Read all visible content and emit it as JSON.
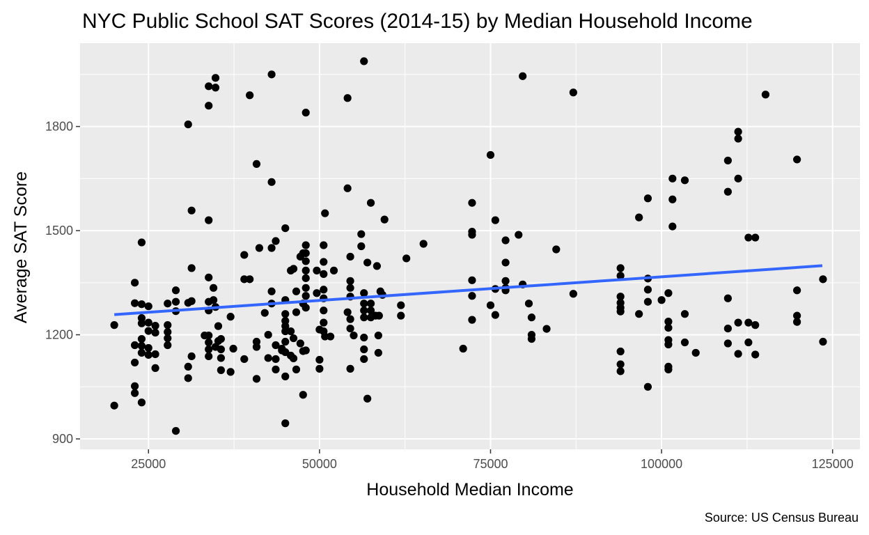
{
  "chart_data": {
    "type": "scatter",
    "title": "NYC Public School SAT Scores (2014-15) by Median Household Income",
    "xlabel": "Household Median Income",
    "ylabel": "Average SAT Score",
    "caption": "Source: US Census Bureau",
    "xlim": [
      15000,
      129000
    ],
    "ylim": [
      870,
      2040
    ],
    "x_ticks": [
      25000,
      50000,
      75000,
      100000,
      125000
    ],
    "y_ticks": [
      900,
      1200,
      1500,
      1800
    ],
    "grid": true,
    "colors": {
      "panel": "#ebebeb",
      "grid": "#ffffff",
      "point": "#000000",
      "trend": "#3366ff",
      "tick_text": "#4d4d4d"
    },
    "trend_line": {
      "x": [
        20000,
        123500
      ],
      "y": [
        1258,
        1399
      ]
    },
    "points": [
      [
        20000,
        1228
      ],
      [
        20000,
        996
      ],
      [
        23000,
        1350
      ],
      [
        23000,
        1291
      ],
      [
        23000,
        1170
      ],
      [
        23000,
        1120
      ],
      [
        23000,
        1052
      ],
      [
        23000,
        1032
      ],
      [
        24000,
        1466
      ],
      [
        24000,
        1288
      ],
      [
        24000,
        1248
      ],
      [
        24000,
        1233
      ],
      [
        24000,
        1188
      ],
      [
        24000,
        1168
      ],
      [
        24000,
        1148
      ],
      [
        24000,
        1005
      ],
      [
        25000,
        1282
      ],
      [
        25000,
        1235
      ],
      [
        25000,
        1211
      ],
      [
        25000,
        1162
      ],
      [
        25000,
        1142
      ],
      [
        26000,
        1226
      ],
      [
        26000,
        1206
      ],
      [
        26000,
        1144
      ],
      [
        26000,
        1104
      ],
      [
        27800,
        1290
      ],
      [
        27800,
        1228
      ],
      [
        27800,
        1208
      ],
      [
        27800,
        1190
      ],
      [
        27800,
        1170
      ],
      [
        29000,
        1328
      ],
      [
        29000,
        1295
      ],
      [
        29000,
        1268
      ],
      [
        29000,
        923
      ],
      [
        30800,
        1806
      ],
      [
        30800,
        1292
      ],
      [
        30800,
        1108
      ],
      [
        30800,
        1075
      ],
      [
        31300,
        1558
      ],
      [
        31300,
        1392
      ],
      [
        31300,
        1297
      ],
      [
        31300,
        1138
      ],
      [
        33200,
        1198
      ],
      [
        33800,
        1916
      ],
      [
        33800,
        1860
      ],
      [
        33800,
        1530
      ],
      [
        33800,
        1365
      ],
      [
        33800,
        1295
      ],
      [
        33800,
        1270
      ],
      [
        33800,
        1198
      ],
      [
        33800,
        1178
      ],
      [
        33800,
        1158
      ],
      [
        33800,
        1138
      ],
      [
        34500,
        1335
      ],
      [
        34500,
        1300
      ],
      [
        34800,
        1940
      ],
      [
        34800,
        1912
      ],
      [
        34800,
        1280
      ],
      [
        34800,
        1165
      ],
      [
        35200,
        1225
      ],
      [
        35200,
        1182
      ],
      [
        35600,
        1188
      ],
      [
        35600,
        1158
      ],
      [
        35600,
        1133
      ],
      [
        35600,
        1098
      ],
      [
        37000,
        1252
      ],
      [
        37000,
        1093
      ],
      [
        37400,
        1160
      ],
      [
        39000,
        1430
      ],
      [
        39000,
        1360
      ],
      [
        39000,
        1130
      ],
      [
        39800,
        1890
      ],
      [
        39800,
        1360
      ],
      [
        40800,
        1692
      ],
      [
        40800,
        1180
      ],
      [
        40800,
        1165
      ],
      [
        40800,
        1073
      ],
      [
        41200,
        1450
      ],
      [
        42000,
        1263
      ],
      [
        42500,
        1200
      ],
      [
        42500,
        1133
      ],
      [
        43000,
        1950
      ],
      [
        43000,
        1640
      ],
      [
        43000,
        1450
      ],
      [
        43000,
        1325
      ],
      [
        43000,
        1290
      ],
      [
        43600,
        1470
      ],
      [
        43600,
        1170
      ],
      [
        43600,
        1130
      ],
      [
        43600,
        1100
      ],
      [
        44500,
        1160
      ],
      [
        44500,
        1155
      ],
      [
        45000,
        1507
      ],
      [
        45000,
        1300
      ],
      [
        45000,
        1260
      ],
      [
        45000,
        1240
      ],
      [
        45000,
        1225
      ],
      [
        45000,
        1210
      ],
      [
        45000,
        1180
      ],
      [
        45000,
        1150
      ],
      [
        45000,
        1080
      ],
      [
        45000,
        945
      ],
      [
        45800,
        1385
      ],
      [
        45800,
        1210
      ],
      [
        45800,
        1140
      ],
      [
        46200,
        1390
      ],
      [
        46200,
        1190
      ],
      [
        46200,
        1132
      ],
      [
        46600,
        1325
      ],
      [
        46600,
        1265
      ],
      [
        46600,
        1100
      ],
      [
        47200,
        1425
      ],
      [
        47200,
        1175
      ],
      [
        47600,
        1435
      ],
      [
        47600,
        1290
      ],
      [
        47600,
        1153
      ],
      [
        47600,
        1027
      ],
      [
        48000,
        1840
      ],
      [
        48000,
        1458
      ],
      [
        48000,
        1435
      ],
      [
        48000,
        1412
      ],
      [
        48000,
        1385
      ],
      [
        48000,
        1363
      ],
      [
        48000,
        1335
      ],
      [
        48000,
        1312
      ],
      [
        48000,
        1278
      ],
      [
        48000,
        1155
      ],
      [
        49600,
        1385
      ],
      [
        49600,
        1320
      ],
      [
        50000,
        1215
      ],
      [
        50000,
        1128
      ],
      [
        50000,
        1102
      ],
      [
        50600,
        1458
      ],
      [
        50600,
        1410
      ],
      [
        50600,
        1375
      ],
      [
        50600,
        1330
      ],
      [
        50600,
        1305
      ],
      [
        50600,
        1270
      ],
      [
        50600,
        1235
      ],
      [
        50600,
        1210
      ],
      [
        50800,
        1550
      ],
      [
        50800,
        1195
      ],
      [
        51600,
        1195
      ],
      [
        52100,
        1385
      ],
      [
        54100,
        1882
      ],
      [
        54100,
        1622
      ],
      [
        54100,
        1265
      ],
      [
        54500,
        1425
      ],
      [
        54500,
        1355
      ],
      [
        54500,
        1335
      ],
      [
        54500,
        1310
      ],
      [
        54500,
        1245
      ],
      [
        54500,
        1218
      ],
      [
        54500,
        1102
      ],
      [
        55000,
        1198
      ],
      [
        56100,
        1490
      ],
      [
        56100,
        1455
      ],
      [
        56500,
        1988
      ],
      [
        56500,
        1320
      ],
      [
        56500,
        1290
      ],
      [
        56500,
        1270
      ],
      [
        56500,
        1250
      ],
      [
        56500,
        1192
      ],
      [
        56500,
        1158
      ],
      [
        56500,
        1130
      ],
      [
        57000,
        1408
      ],
      [
        57000,
        1016
      ],
      [
        57500,
        1580
      ],
      [
        57500,
        1290
      ],
      [
        57500,
        1270
      ],
      [
        57500,
        1250
      ],
      [
        58200,
        1255
      ],
      [
        58400,
        1398
      ],
      [
        58600,
        1198
      ],
      [
        58600,
        1148
      ],
      [
        58700,
        1255
      ],
      [
        58900,
        1325
      ],
      [
        59200,
        1315
      ],
      [
        59500,
        1532
      ],
      [
        61900,
        1285
      ],
      [
        61900,
        1255
      ],
      [
        62700,
        1420
      ],
      [
        65200,
        1462
      ],
      [
        71000,
        1160
      ],
      [
        72300,
        1580
      ],
      [
        72300,
        1497
      ],
      [
        72300,
        1488
      ],
      [
        72300,
        1357
      ],
      [
        72300,
        1312
      ],
      [
        72300,
        1243
      ],
      [
        75000,
        1718
      ],
      [
        75000,
        1285
      ],
      [
        75700,
        1530
      ],
      [
        75700,
        1332
      ],
      [
        75700,
        1257
      ],
      [
        77200,
        1472
      ],
      [
        77200,
        1408
      ],
      [
        77200,
        1355
      ],
      [
        77200,
        1335
      ],
      [
        77200,
        1328
      ],
      [
        79100,
        1488
      ],
      [
        79700,
        1945
      ],
      [
        79700,
        1345
      ],
      [
        80600,
        1290
      ],
      [
        81000,
        1250
      ],
      [
        81000,
        1200
      ],
      [
        81000,
        1188
      ],
      [
        83200,
        1217
      ],
      [
        84600,
        1446
      ],
      [
        87100,
        1898
      ],
      [
        87100,
        1318
      ],
      [
        94000,
        1392
      ],
      [
        94000,
        1370
      ],
      [
        94000,
        1310
      ],
      [
        94000,
        1292
      ],
      [
        94000,
        1278
      ],
      [
        94000,
        1267
      ],
      [
        94000,
        1152
      ],
      [
        94000,
        1115
      ],
      [
        94000,
        1095
      ],
      [
        96700,
        1538
      ],
      [
        96700,
        1260
      ],
      [
        98000,
        1593
      ],
      [
        98000,
        1362
      ],
      [
        98000,
        1330
      ],
      [
        98000,
        1295
      ],
      [
        98000,
        1050
      ],
      [
        100000,
        1300
      ],
      [
        101000,
        1320
      ],
      [
        101000,
        1238
      ],
      [
        101000,
        1220
      ],
      [
        101000,
        1185
      ],
      [
        101000,
        1172
      ],
      [
        101000,
        1108
      ],
      [
        101000,
        1100
      ],
      [
        101600,
        1650
      ],
      [
        101600,
        1590
      ],
      [
        101600,
        1512
      ],
      [
        103400,
        1645
      ],
      [
        103400,
        1260
      ],
      [
        103400,
        1178
      ],
      [
        105000,
        1148
      ],
      [
        109700,
        1702
      ],
      [
        109700,
        1612
      ],
      [
        109700,
        1305
      ],
      [
        109700,
        1218
      ],
      [
        109700,
        1175
      ],
      [
        111200,
        1785
      ],
      [
        111200,
        1765
      ],
      [
        111200,
        1650
      ],
      [
        111200,
        1235
      ],
      [
        111200,
        1145
      ],
      [
        112700,
        1480
      ],
      [
        112700,
        1235
      ],
      [
        112700,
        1178
      ],
      [
        113700,
        1480
      ],
      [
        113700,
        1228
      ],
      [
        113700,
        1143
      ],
      [
        115200,
        1892
      ],
      [
        119800,
        1705
      ],
      [
        119800,
        1328
      ],
      [
        119800,
        1255
      ],
      [
        119800,
        1237
      ],
      [
        123600,
        1360
      ],
      [
        123600,
        1180
      ]
    ]
  }
}
